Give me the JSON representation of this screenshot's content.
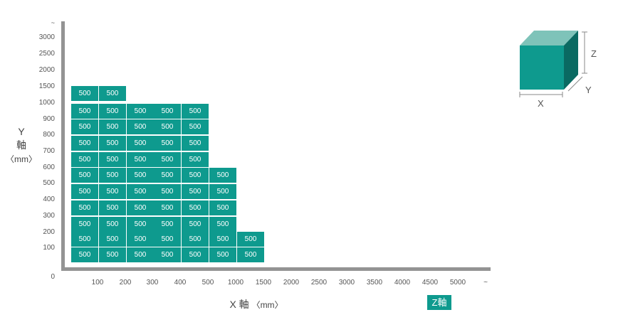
{
  "chart_data": {
    "type": "heatmap",
    "xlabel": "X 軸",
    "xlabel_unit": "〈mm〉",
    "ylabel": "Y",
    "ylabel_axis": "軸",
    "ylabel_unit": "〈mm〉",
    "x_ticks": [
      "100",
      "200",
      "300",
      "400",
      "500",
      "1000",
      "1500",
      "2000",
      "2500",
      "3000",
      "3500",
      "4000",
      "4500",
      "5000",
      "~"
    ],
    "y_ticks": [
      "0",
      "100",
      "200",
      "300",
      "400",
      "500",
      "600",
      "700",
      "800",
      "900",
      "1000",
      "1500",
      "2000",
      "2500",
      "3000",
      "~"
    ],
    "cell_label": "500",
    "columns_filled_per_row": [
      {
        "y": "100",
        "columns": 7
      },
      {
        "y": "200",
        "columns": 7
      },
      {
        "y": "300",
        "columns": 6
      },
      {
        "y": "400",
        "columns": 6
      },
      {
        "y": "500",
        "columns": 6
      },
      {
        "y": "600",
        "columns": 6
      },
      {
        "y": "700",
        "columns": 5
      },
      {
        "y": "800",
        "columns": 5
      },
      {
        "y": "900",
        "columns": 5
      },
      {
        "y": "1000",
        "columns": 5
      },
      {
        "y": "1500",
        "columns": 2
      }
    ],
    "z_label": "Z軸",
    "color": "#0e9a8e"
  },
  "legend": {
    "x": "X",
    "y": "Y",
    "z": "Z",
    "front_color": "#0e9a8e",
    "top_color": "#7ec3b9",
    "side_color": "#0a6a62"
  }
}
